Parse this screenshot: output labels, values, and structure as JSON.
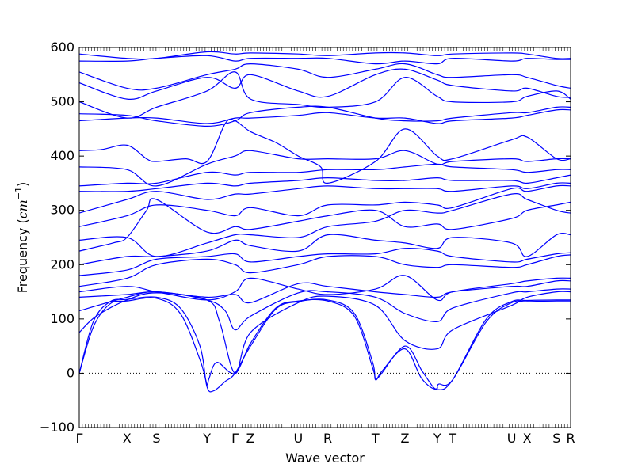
{
  "chart_data": {
    "type": "line",
    "title": "",
    "xlabel": "Wave vector",
    "ylabel_text": "Frequency (",
    "ylabel_unit": "cm",
    "ylabel_exp": "−1",
    "ylabel_close": ")",
    "ylim": [
      -100,
      600
    ],
    "yticks": [
      -100,
      0,
      100,
      200,
      300,
      400,
      500,
      600
    ],
    "xlim": [
      0,
      17.5
    ],
    "zero_line": true,
    "grid": false,
    "high_symmetry_points": [
      {
        "label": "Γ",
        "x": 0.0
      },
      {
        "label": "X",
        "x": 1.7
      },
      {
        "label": "S",
        "x": 2.75
      },
      {
        "label": "Y",
        "x": 4.55
      },
      {
        "label": "Γ",
        "x": 5.55
      },
      {
        "label": "Z",
        "x": 6.1
      },
      {
        "label": "U",
        "x": 7.8
      },
      {
        "label": "R",
        "x": 8.85
      },
      {
        "label": "T",
        "x": 10.55
      },
      {
        "label": "Z",
        "x": 11.6
      },
      {
        "label": "Y",
        "x": 12.75
      },
      {
        "label": "T",
        "x": 13.3
      },
      {
        "label": "U",
        "x": 15.4
      },
      {
        "label": "X",
        "x": 15.95
      },
      {
        "label": "S",
        "x": 17.0
      },
      {
        "label": "R",
        "x": 17.5
      }
    ],
    "line_color": "#0000ff",
    "series": [
      {
        "x": [
          0,
          0.5,
          1.1,
          1.7,
          2.75,
          3.6,
          4.3,
          4.55,
          4.62,
          4.9,
          5.55,
          6.1,
          7.0,
          7.8,
          8.85,
          9.8,
          10.45,
          10.55,
          10.7,
          11.6,
          12.2,
          12.6,
          12.75,
          12.8,
          13.3,
          14.5,
          15.4,
          15.95,
          17.0,
          17.5
        ],
        "y": [
          0,
          85,
          128,
          133,
          138,
          110,
          25,
          -20,
          -10,
          20,
          0,
          55,
          120,
          133,
          133,
          105,
          10,
          -10,
          -5,
          50,
          5,
          -25,
          -28,
          -20,
          -12,
          95,
          130,
          132,
          133,
          133
        ]
      },
      {
        "x": [
          0,
          0.5,
          1.1,
          1.7,
          2.75,
          3.6,
          4.3,
          4.55,
          4.8,
          5.2,
          5.55,
          6.1,
          7.0,
          7.8,
          8.85,
          9.8,
          10.45,
          10.55,
          10.8,
          11.6,
          12.2,
          12.75,
          13.3,
          14.5,
          15.4,
          15.95,
          17.0,
          17.5
        ],
        "y": [
          0,
          95,
          132,
          136,
          140,
          120,
          50,
          -25,
          -32,
          -15,
          0,
          50,
          118,
          132,
          135,
          110,
          20,
          -12,
          5,
          45,
          -10,
          -30,
          -12,
          100,
          132,
          134,
          135,
          135
        ]
      },
      {
        "x": [
          0,
          0.6,
          1.7,
          2.75,
          4.55,
          5.0,
          5.55,
          6.1,
          7.8,
          8.85,
          10.55,
          11.6,
          12.75,
          13.3,
          15.4,
          15.95,
          17.0,
          17.5
        ],
        "y": [
          75,
          105,
          135,
          148,
          135,
          95,
          0,
          75,
          130,
          142,
          125,
          60,
          45,
          80,
          125,
          140,
          150,
          150
        ]
      },
      {
        "x": [
          0,
          1.7,
          2.75,
          4.55,
          5.2,
          5.55,
          6.1,
          7.8,
          8.85,
          10.55,
          11.6,
          12.75,
          13.3,
          15.4,
          15.95,
          17.0,
          17.5
        ],
        "y": [
          115,
          140,
          150,
          135,
          115,
          80,
          105,
          148,
          150,
          140,
          110,
          95,
          120,
          148,
          150,
          155,
          155
        ]
      },
      {
        "x": [
          0,
          1.7,
          2.75,
          4.55,
          5.55,
          6.1,
          7.8,
          8.85,
          10.55,
          11.6,
          12.75,
          13.3,
          15.4,
          15.95,
          17.0,
          17.5
        ],
        "y": [
          140,
          145,
          150,
          140,
          145,
          130,
          165,
          160,
          150,
          145,
          140,
          150,
          160,
          160,
          170,
          170
        ]
      },
      {
        "x": [
          0,
          1.7,
          2.75,
          4.55,
          5.55,
          6.1,
          7.8,
          8.85,
          10.55,
          11.6,
          12.75,
          13.3,
          15.4,
          15.95,
          17.0,
          17.5
        ],
        "y": [
          150,
          160,
          150,
          135,
          150,
          175,
          155,
          145,
          155,
          180,
          135,
          150,
          165,
          170,
          175,
          175
        ]
      },
      {
        "x": [
          0,
          1.7,
          2.75,
          4.55,
          5.55,
          6.1,
          7.8,
          8.85,
          10.55,
          11.6,
          12.75,
          13.3,
          15.4,
          15.95,
          17.0,
          17.5
        ],
        "y": [
          160,
          175,
          200,
          210,
          200,
          185,
          200,
          215,
          215,
          200,
          195,
          200,
          195,
          200,
          215,
          218
        ]
      },
      {
        "x": [
          0,
          1.7,
          2.75,
          4.55,
          5.55,
          6.1,
          7.8,
          8.85,
          10.55,
          11.6,
          12.75,
          13.3,
          15.4,
          15.95,
          17.0,
          17.5
        ],
        "y": [
          180,
          190,
          210,
          215,
          220,
          205,
          215,
          220,
          220,
          230,
          225,
          215,
          205,
          210,
          220,
          222
        ]
      },
      {
        "x": [
          0,
          1.7,
          2.75,
          4.55,
          5.55,
          6.1,
          7.8,
          8.85,
          10.55,
          11.6,
          12.75,
          13.3,
          15.4,
          15.95,
          17.0,
          17.5
        ],
        "y": [
          200,
          215,
          215,
          225,
          245,
          235,
          225,
          255,
          245,
          240,
          230,
          250,
          240,
          215,
          255,
          255
        ]
      },
      {
        "x": [
          0,
          1.2,
          1.7,
          2.4,
          2.75,
          4.55,
          5.55,
          6.1,
          7.8,
          8.85,
          10.55,
          11.6,
          12.75,
          13.3,
          15.4,
          15.95,
          17.0,
          17.5
        ],
        "y": [
          225,
          240,
          250,
          300,
          320,
          260,
          270,
          265,
          280,
          290,
          300,
          270,
          275,
          265,
          285,
          300,
          310,
          315
        ]
      },
      {
        "x": [
          0,
          1.7,
          2.75,
          4.55,
          5.55,
          6.1,
          7.8,
          8.85,
          10.55,
          11.6,
          12.75,
          13.3,
          15.4,
          15.95,
          17.0,
          17.5
        ],
        "y": [
          245,
          250,
          215,
          240,
          255,
          255,
          250,
          270,
          280,
          300,
          295,
          300,
          330,
          320,
          300,
          295
        ]
      },
      {
        "x": [
          0,
          1.7,
          2.75,
          4.55,
          5.55,
          6.1,
          7.8,
          8.85,
          10.55,
          11.6,
          12.75,
          13.3,
          15.4,
          15.95,
          17.0,
          17.5
        ],
        "y": [
          270,
          290,
          310,
          300,
          290,
          305,
          290,
          310,
          310,
          315,
          310,
          305,
          340,
          335,
          345,
          345
        ]
      },
      {
        "x": [
          0,
          1.7,
          2.75,
          4.55,
          5.55,
          6.1,
          7.8,
          8.85,
          10.55,
          11.6,
          12.75,
          13.3,
          15.4,
          15.95,
          17.0,
          17.5
        ],
        "y": [
          295,
          320,
          335,
          320,
          330,
          330,
          340,
          345,
          340,
          340,
          340,
          335,
          345,
          340,
          350,
          350
        ]
      },
      {
        "x": [
          0,
          1.7,
          2.75,
          4.55,
          5.55,
          6.1,
          7.8,
          8.85,
          10.55,
          11.6,
          12.75,
          13.3,
          15.4,
          15.95,
          17.0,
          17.5
        ],
        "y": [
          335,
          335,
          340,
          350,
          345,
          350,
          355,
          360,
          355,
          355,
          360,
          355,
          355,
          350,
          360,
          365
        ]
      },
      {
        "x": [
          0,
          1.7,
          2.75,
          4.55,
          5.55,
          6.1,
          7.8,
          8.85,
          10.55,
          11.6,
          12.75,
          13.3,
          15.4,
          15.95,
          17.0,
          17.5
        ],
        "y": [
          345,
          350,
          350,
          370,
          365,
          370,
          370,
          375,
          375,
          380,
          385,
          380,
          375,
          370,
          375,
          375
        ]
      },
      {
        "x": [
          0,
          1.7,
          2.75,
          4.55,
          5.55,
          6.1,
          7.8,
          8.85,
          10.55,
          11.6,
          12.75,
          13.3,
          15.4,
          15.95,
          17.0,
          17.5
        ],
        "y": [
          380,
          375,
          345,
          385,
          400,
          410,
          395,
          395,
          395,
          410,
          385,
          390,
          395,
          390,
          395,
          395
        ]
      },
      {
        "x": [
          0,
          0.8,
          1.7,
          2.4,
          2.75,
          3.8,
          4.55,
          5.2,
          5.55,
          6.1,
          7.0,
          7.8,
          8.6,
          8.85,
          10.55,
          11.6,
          12.75,
          13.3,
          15.4,
          15.95,
          17.0,
          17.5
        ],
        "y": [
          410,
          412,
          420,
          395,
          390,
          395,
          390,
          460,
          465,
          445,
          425,
          400,
          380,
          350,
          390,
          450,
          400,
          395,
          430,
          435,
          395,
          395
        ]
      },
      {
        "x": [
          0,
          1.7,
          2.75,
          4.55,
          5.55,
          6.1,
          7.8,
          8.85,
          10.55,
          11.6,
          12.75,
          13.3,
          15.4,
          15.95,
          17.0,
          17.5
        ],
        "y": [
          465,
          470,
          470,
          460,
          470,
          470,
          475,
          480,
          470,
          470,
          460,
          465,
          470,
          475,
          485,
          485
        ]
      },
      {
        "x": [
          0,
          1.7,
          2.75,
          4.55,
          5.55,
          6.1,
          7.8,
          8.85,
          10.55,
          11.6,
          12.75,
          13.3,
          15.4,
          15.95,
          17.0,
          17.5
        ],
        "y": [
          478,
          475,
          465,
          455,
          465,
          480,
          490,
          490,
          470,
          465,
          465,
          470,
          480,
          480,
          490,
          490
        ]
      },
      {
        "x": [
          0,
          1.7,
          2.75,
          4.55,
          5.55,
          6.1,
          7.8,
          8.85,
          10.55,
          11.6,
          12.75,
          13.3,
          15.4,
          15.95,
          17.0,
          17.5
        ],
        "y": [
          500,
          470,
          490,
          520,
          555,
          505,
          495,
          490,
          500,
          545,
          510,
          500,
          500,
          510,
          520,
          505
        ]
      },
      {
        "x": [
          0,
          1.7,
          2.75,
          4.55,
          5.55,
          6.1,
          7.8,
          8.85,
          10.55,
          11.6,
          12.75,
          13.3,
          15.4,
          15.95,
          17.0,
          17.5
        ],
        "y": [
          535,
          505,
          520,
          545,
          525,
          550,
          520,
          510,
          550,
          560,
          540,
          530,
          520,
          525,
          510,
          508
        ]
      },
      {
        "x": [
          0,
          1.7,
          2.75,
          4.55,
          5.55,
          6.1,
          7.8,
          8.85,
          10.55,
          11.6,
          12.75,
          13.3,
          15.4,
          15.95,
          17.0,
          17.5
        ],
        "y": [
          555,
          525,
          525,
          550,
          560,
          570,
          560,
          545,
          560,
          570,
          550,
          545,
          550,
          545,
          530,
          525
        ]
      },
      {
        "x": [
          0,
          1.7,
          2.75,
          4.55,
          5.55,
          6.1,
          7.8,
          8.85,
          10.55,
          11.6,
          12.75,
          13.3,
          15.4,
          15.95,
          17.0,
          17.5
        ],
        "y": [
          575,
          575,
          580,
          585,
          575,
          580,
          580,
          580,
          570,
          575,
          570,
          580,
          575,
          580,
          578,
          578
        ]
      },
      {
        "x": [
          0,
          1.7,
          2.75,
          4.55,
          5.55,
          6.1,
          7.8,
          8.85,
          10.55,
          11.6,
          12.75,
          13.3,
          15.4,
          15.95,
          17.0,
          17.5
        ],
        "y": [
          588,
          580,
          580,
          592,
          588,
          590,
          588,
          585,
          590,
          590,
          585,
          588,
          590,
          588,
          580,
          580
        ]
      }
    ]
  }
}
